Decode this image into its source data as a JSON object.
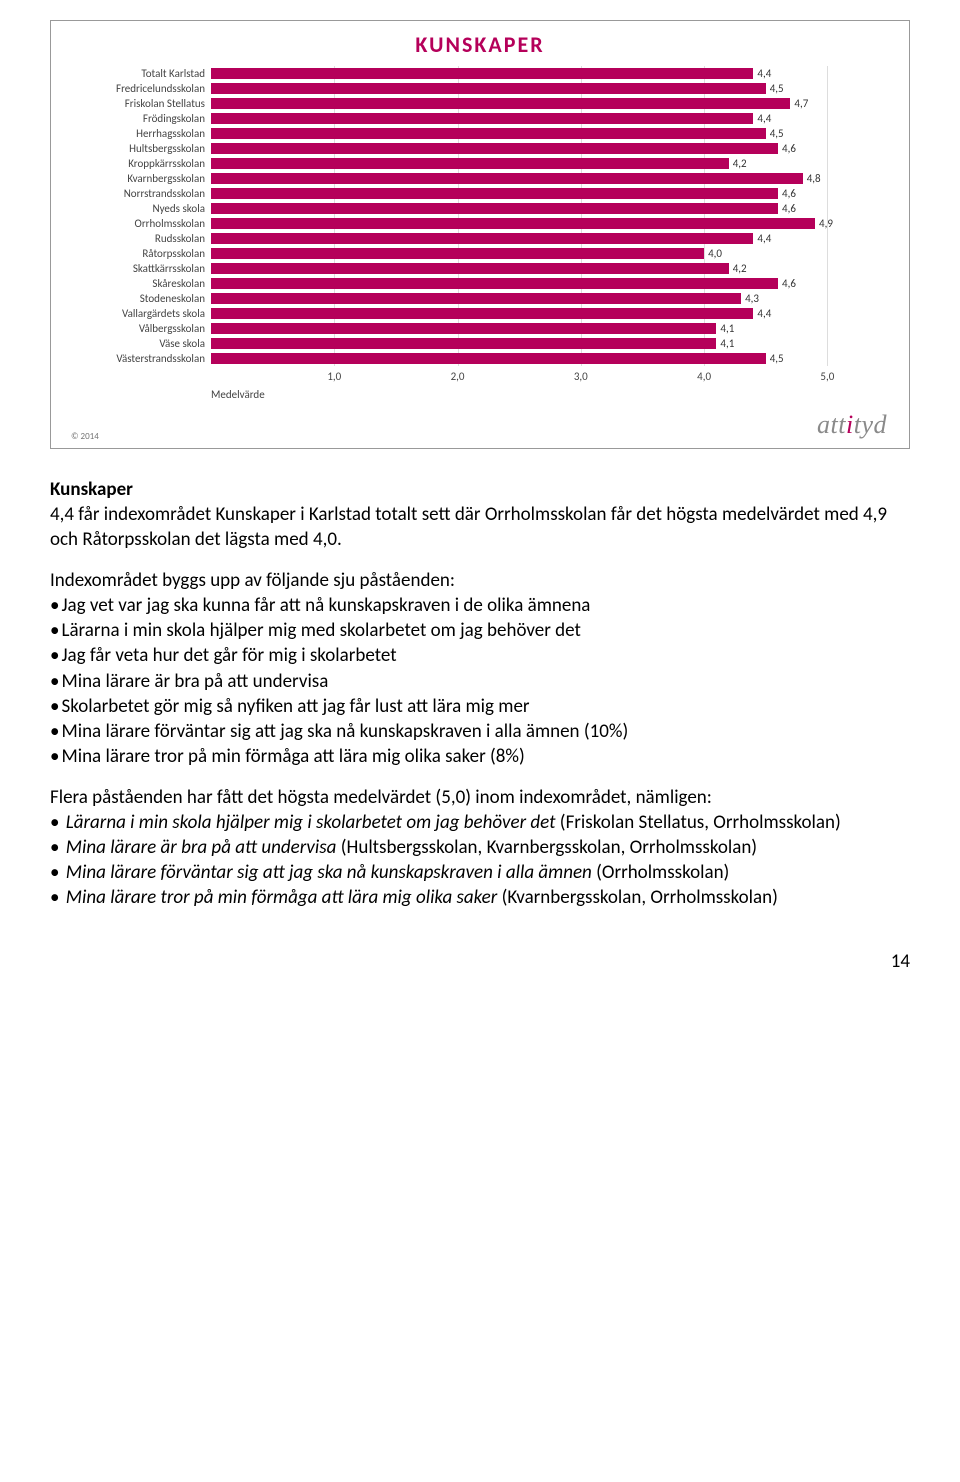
{
  "chart": {
    "title": "KUNSKAPER",
    "title_color": "#b5005a",
    "title_fontsize": 22,
    "type": "bar",
    "bar_color": "#b5005a",
    "grid_color": "#dddddd",
    "label_fontsize": 11,
    "value_fontsize": 11,
    "xmin": 0,
    "xmax": 5.5,
    "xtick_start": 1.0,
    "xtick_step": 1.0,
    "tick_labels": [
      "1,0",
      "2,0",
      "3,0",
      "4,0",
      "5,0"
    ],
    "axis_label": "Medelvärde",
    "categories": [
      "Totalt Karlstad",
      "Fredricelundsskolan",
      "Friskolan Stellatus",
      "Frödingskolan",
      "Herrhagsskolan",
      "Hultsbergsskolan",
      "Kroppkärrsskolan",
      "Kvarnbergsskolan",
      "Norrstrandsskolan",
      "Nyeds skola",
      "Orrholmsskolan",
      "Rudsskolan",
      "Råtorpsskolan",
      "Skattkärrsskolan",
      "Skåreskolan",
      "Stodeneskolan",
      "Vallargärdets skola",
      "Vålbergsskolan",
      "Väse skola",
      "Västerstrandsskolan"
    ],
    "values": [
      4.4,
      4.5,
      4.7,
      4.4,
      4.5,
      4.6,
      4.2,
      4.8,
      4.6,
      4.6,
      4.9,
      4.4,
      4.0,
      4.2,
      4.6,
      4.3,
      4.4,
      4.1,
      4.1,
      4.5
    ],
    "value_labels": [
      "4,4",
      "4,5",
      "4,7",
      "4,4",
      "4,5",
      "4,6",
      "4,2",
      "4,8",
      "4,6",
      "4,6",
      "4,9",
      "4,4",
      "4,0",
      "4,2",
      "4,6",
      "4,3",
      "4,4",
      "4,1",
      "4,1",
      "4,5"
    ],
    "copyright": "© 2014",
    "brand": "attityd"
  },
  "text": {
    "heading": "Kunskaper",
    "intro": "4,4 får indexområdet Kunskaper i Karlstad totalt sett där Orrholmsskolan får det högsta medelvärdet med 4,9 och Råtorpsskolan det lägsta med 4,0.",
    "list_intro": "Indexområdet byggs upp av följande sju påståenden:",
    "bullets": [
      "Jag vet var jag ska kunna får att nå kunskapskraven i de olika ämnena",
      "Lärarna i min skola hjälper mig med skolarbetet om jag behöver det",
      "Jag får veta hur det går för mig i skolarbetet",
      "Mina lärare är bra på att undervisa",
      "Skolarbetet gör mig så nyfiken att jag får lust att lära mig mer",
      "Mina lärare förväntar sig att jag ska nå kunskapskraven i alla ämnen (10%)",
      "Mina lärare tror på min förmåga att lära mig olika saker (8%)"
    ],
    "para2_a": "Flera påståenden har fått det högsta medelvärdet (5,0) inom indexområdet, nämligen:",
    "items2": [
      {
        "italic": "Lärarna i min skola hjälper mig i skolarbetet om jag behöver det",
        "plain": " (Friskolan Stellatus, Orrholmsskolan)"
      },
      {
        "italic": "Mina lärare är bra på att undervisa",
        "plain": " (Hultsbergsskolan, Kvarnbergsskolan, Orrholmsskolan)"
      },
      {
        "italic": "Mina lärare förväntar sig att jag ska nå kunskapskraven i alla ämnen",
        "plain": " (Orrholmsskolan)"
      },
      {
        "italic": "Mina lärare tror på min förmåga att lära mig olika saker",
        "plain": " (Kvarnbergsskolan, Orrholmsskolan)"
      }
    ]
  },
  "page_number": "14"
}
